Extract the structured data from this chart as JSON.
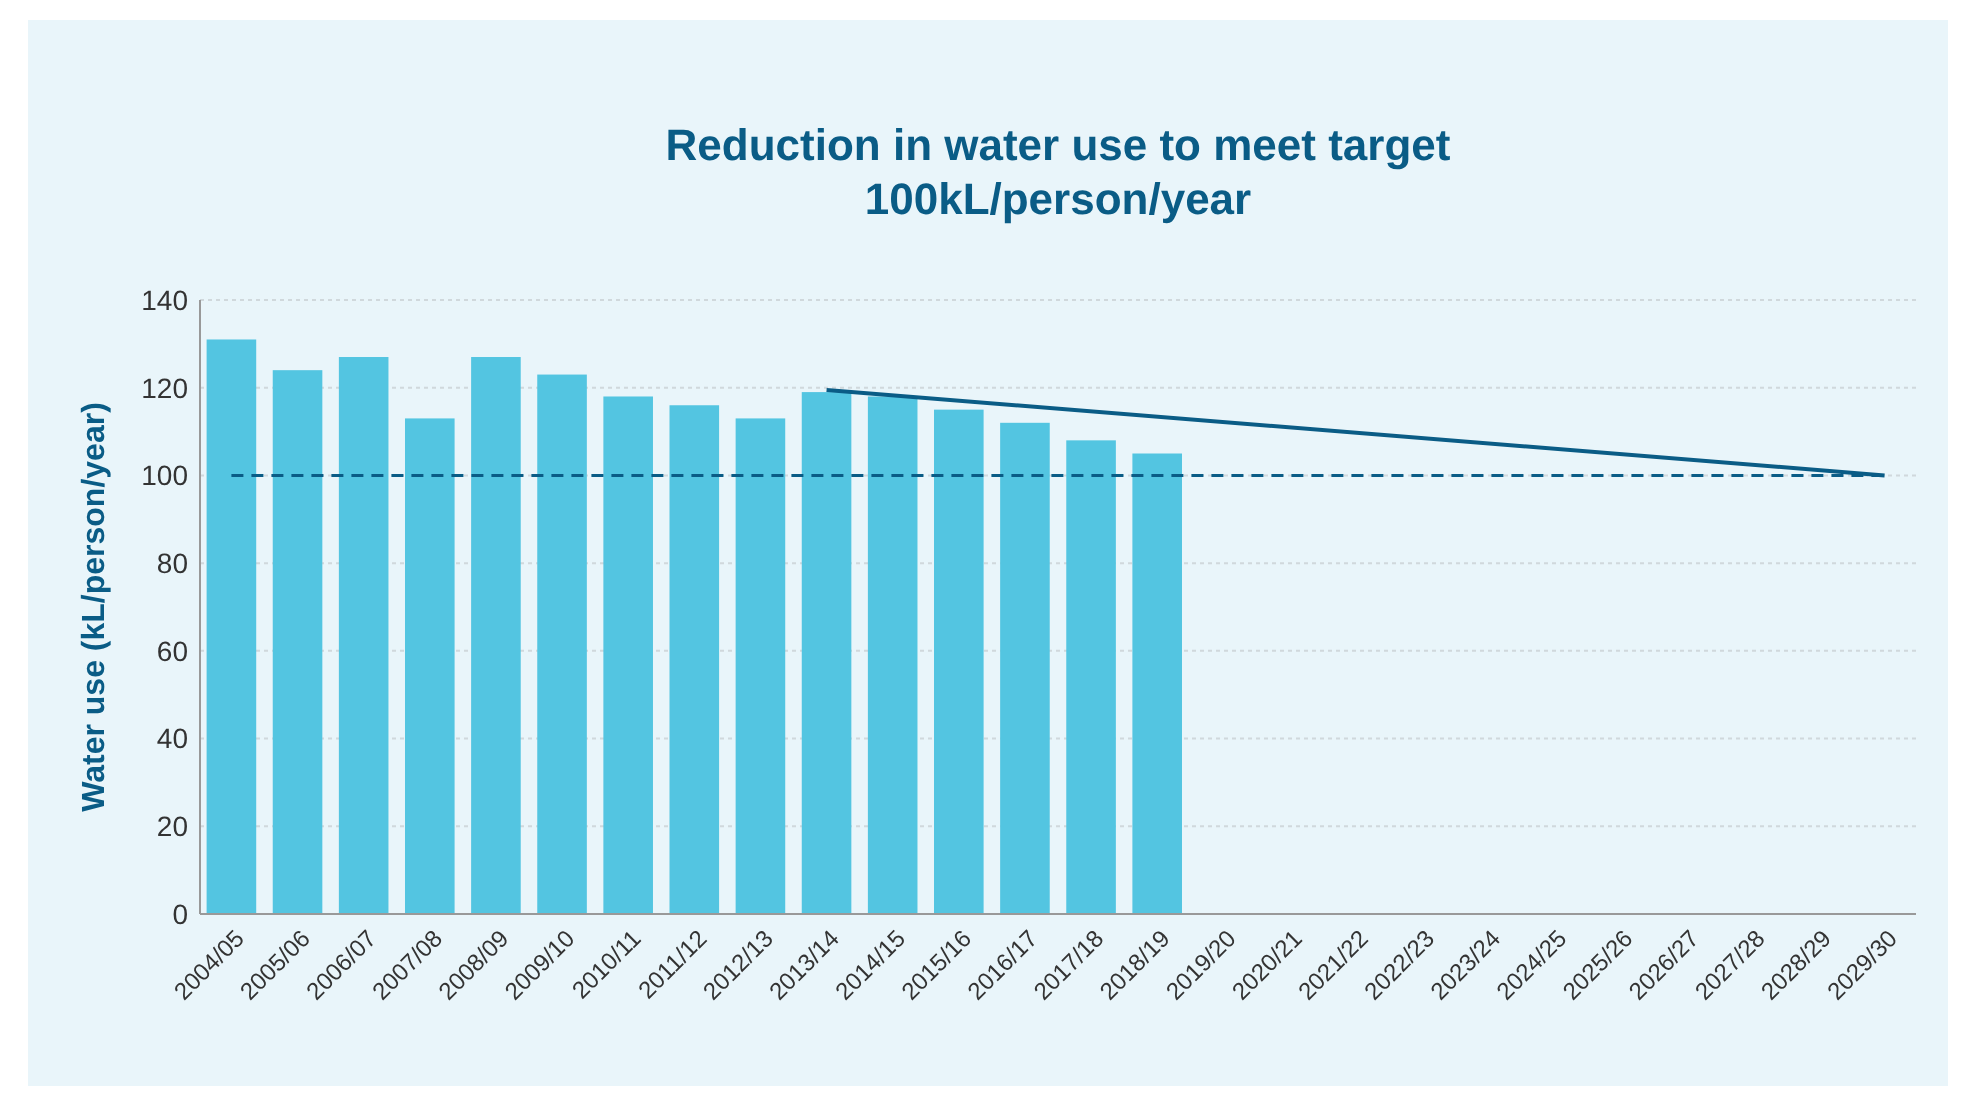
{
  "chart_data": {
    "type": "bar",
    "title": "Reduction in water use to meet target\n100kL/person/year",
    "ylabel": "Water use (kL/person/year)",
    "categories": [
      "2004/05",
      "2005/06",
      "2006/07",
      "2007/08",
      "2008/09",
      "2009/10",
      "2010/11",
      "2011/12",
      "2012/13",
      "2013/14",
      "2014/15",
      "2015/16",
      "2016/17",
      "2017/18",
      "2018/19",
      "2019/20",
      "2020/21",
      "2021/22",
      "2022/23",
      "2023/24",
      "2024/25",
      "2025/26",
      "2026/27",
      "2027/28",
      "2028/29",
      "2029/30"
    ],
    "series": [
      {
        "color": "#53c5e1",
        "values": [
          131,
          124,
          127,
          113,
          127,
          123,
          118,
          116,
          113,
          119,
          118,
          115,
          112,
          108,
          105,
          null,
          null,
          null,
          null,
          null,
          null,
          null,
          null,
          null,
          null,
          null
        ]
      },
      {
        "type": "line",
        "color": "#0a5c86",
        "x": [
          "2013/14",
          "2029/30"
        ],
        "values": [
          119.5,
          100
        ]
      }
    ],
    "ylim": [
      0,
      140
    ],
    "yticks": [
      0,
      20,
      40,
      60,
      80,
      100,
      120,
      140
    ],
    "grid": "y",
    "ref_lines": [
      {
        "axis": "y",
        "value": 100,
        "color": "#0a5c86",
        "line_style": "dashed"
      }
    ]
  }
}
